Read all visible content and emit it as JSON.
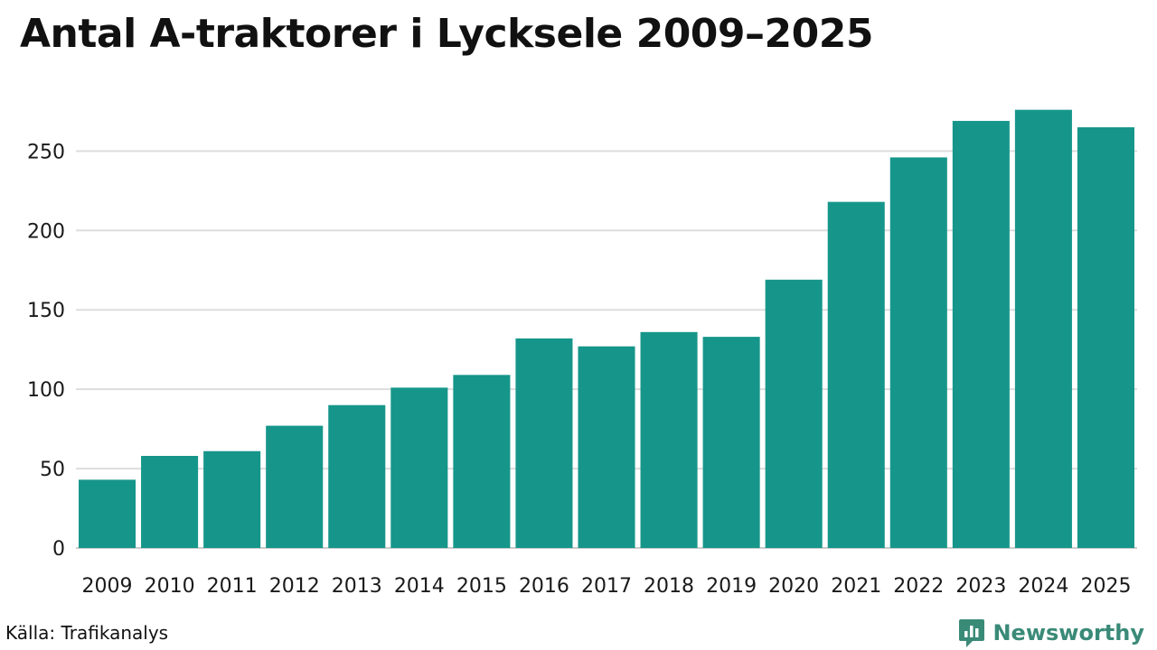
{
  "title": "Antal A-traktorer i Lycksele 2009–2025",
  "source": "Källa: Trafikanalys",
  "brand": {
    "name": "Newsworthy",
    "color": "#3a8a78",
    "logo_icon": "bar-chart-speech-bubble-icon"
  },
  "colors": {
    "bar": "#16968a",
    "grid": "#dddddd",
    "baseline": "#cccccc"
  },
  "chart_data": {
    "type": "bar",
    "title": "Antal A-traktorer i Lycksele 2009–2025",
    "xlabel": "",
    "ylabel": "",
    "categories": [
      "2009",
      "2010",
      "2011",
      "2012",
      "2013",
      "2014",
      "2015",
      "2016",
      "2017",
      "2018",
      "2019",
      "2020",
      "2021",
      "2022",
      "2023",
      "2024",
      "2025"
    ],
    "values": [
      43,
      58,
      61,
      77,
      90,
      101,
      109,
      132,
      127,
      136,
      133,
      169,
      218,
      246,
      269,
      276,
      265
    ],
    "ylim": [
      0,
      290
    ],
    "yticks": [
      0,
      50,
      100,
      150,
      200,
      250
    ],
    "grid": true,
    "legend": "none"
  }
}
